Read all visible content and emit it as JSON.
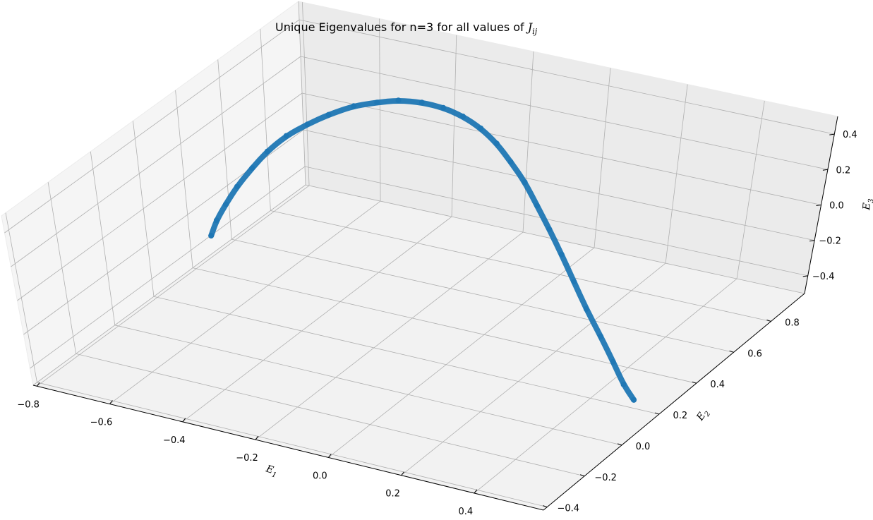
{
  "chart_data": {
    "type": "scatter",
    "title": "Unique Eigenvalues for n=3 for all values of",
    "title_symbol": "J",
    "title_symbol_subscript": "ij",
    "xlabel": "E",
    "xlabel_subscript": "1",
    "ylabel": "E",
    "ylabel_subscript": "2",
    "zlabel": "E",
    "zlabel_subscript": "3",
    "x_ticks": [
      "−0.8",
      "−0.6",
      "−0.4",
      "−0.2",
      "0.0",
      "0.2",
      "0.4"
    ],
    "y_ticks": [
      "−0.4",
      "−0.2",
      "0.0",
      "0.2",
      "0.4",
      "0.6",
      "0.8"
    ],
    "z_ticks": [
      "−0.4",
      "−0.2",
      "0.0",
      "0.2",
      "0.4"
    ],
    "grid": true,
    "projection": "3d",
    "series_color": "#1f77b4",
    "series": [
      {
        "points": [
          {
            "x": -0.82,
            "y": 0.36,
            "z": -0.34
          },
          {
            "x": -0.82,
            "y": 0.39,
            "z": -0.28
          },
          {
            "x": -0.81,
            "y": 0.42,
            "z": -0.21
          },
          {
            "x": -0.8,
            "y": 0.46,
            "z": -0.14
          },
          {
            "x": -0.78,
            "y": 0.5,
            "z": -0.06
          },
          {
            "x": -0.76,
            "y": 0.54,
            "z": 0.01
          },
          {
            "x": -0.73,
            "y": 0.58,
            "z": 0.08
          },
          {
            "x": -0.69,
            "y": 0.61,
            "z": 0.14
          },
          {
            "x": -0.65,
            "y": 0.64,
            "z": 0.19
          },
          {
            "x": -0.6,
            "y": 0.67,
            "z": 0.24
          },
          {
            "x": -0.55,
            "y": 0.69,
            "z": 0.27
          },
          {
            "x": -0.5,
            "y": 0.7,
            "z": 0.3
          },
          {
            "x": -0.44,
            "y": 0.7,
            "z": 0.32
          },
          {
            "x": -0.38,
            "y": 0.69,
            "z": 0.33
          },
          {
            "x": -0.32,
            "y": 0.67,
            "z": 0.33
          },
          {
            "x": -0.26,
            "y": 0.64,
            "z": 0.32
          },
          {
            "x": -0.2,
            "y": 0.6,
            "z": 0.3
          },
          {
            "x": -0.14,
            "y": 0.55,
            "z": 0.27
          },
          {
            "x": -0.08,
            "y": 0.5,
            "z": 0.23
          },
          {
            "x": -0.02,
            "y": 0.44,
            "z": 0.18
          },
          {
            "x": 0.04,
            "y": 0.38,
            "z": 0.13
          },
          {
            "x": 0.1,
            "y": 0.32,
            "z": 0.07
          },
          {
            "x": 0.16,
            "y": 0.26,
            "z": 0.0
          },
          {
            "x": 0.22,
            "y": 0.2,
            "z": -0.07
          },
          {
            "x": 0.28,
            "y": 0.15,
            "z": -0.15
          },
          {
            "x": 0.33,
            "y": 0.11,
            "z": -0.23
          },
          {
            "x": 0.37,
            "y": 0.08,
            "z": -0.31
          },
          {
            "x": 0.4,
            "y": 0.07,
            "z": -0.37
          }
        ]
      }
    ]
  }
}
